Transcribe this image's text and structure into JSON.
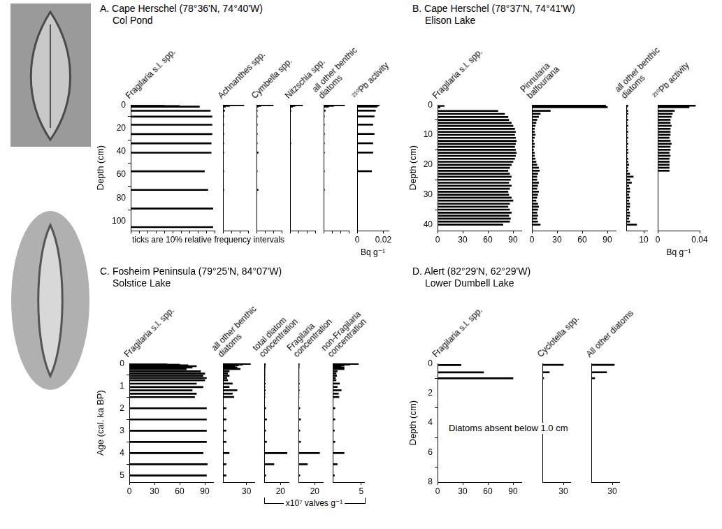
{
  "chart_data": [
    {
      "type": "bar",
      "orientation": "horizontal",
      "title": "A. Cape Herschel (78°36'N, 74°40'W)",
      "subtitle": "Col Pond",
      "y_label": "Depth (cm)",
      "ylim": [
        0,
        108
      ],
      "yticks": [
        0,
        20,
        40,
        60,
        80,
        100
      ],
      "y": [
        0.3,
        0.8,
        1.5,
        5,
        10,
        17,
        25,
        33,
        41,
        57,
        73,
        89,
        105
      ],
      "annotation": "ticks are 10% relative frequency intervals",
      "series": [
        {
          "name": "Fragilaria s.l. spp.",
          "color": "#000000",
          "tick_labels": false,
          "xlim": [
            0,
            100
          ],
          "xticks": [
            0,
            10,
            20,
            30,
            40,
            50,
            60,
            70,
            80,
            90,
            100
          ],
          "values": [
            40,
            58,
            82,
            95,
            97,
            97,
            97,
            96,
            96,
            88,
            92,
            98,
            98
          ]
        },
        {
          "name": "Achnanthes spp.",
          "color": "#000000",
          "tick_labels": false,
          "xlim": [
            0,
            30
          ],
          "xticks": [
            0,
            10,
            20,
            30
          ],
          "values": [
            25,
            8,
            3,
            2,
            1,
            1,
            1,
            1,
            1,
            1,
            1,
            0.5,
            0.5
          ]
        },
        {
          "name": "Cymbella spp.",
          "color": "#000000",
          "tick_labels": false,
          "xlim": [
            0,
            30
          ],
          "xticks": [
            0,
            10,
            20,
            30
          ],
          "values": [
            20,
            5,
            2,
            1,
            1,
            1,
            1,
            1,
            2,
            1,
            2,
            0.5,
            0.5
          ]
        },
        {
          "name": "Nitzschia spp.",
          "color": "#000000",
          "tick_labels": false,
          "xlim": [
            0,
            30
          ],
          "xticks": [
            0,
            10,
            20,
            30
          ],
          "values": [
            15,
            6,
            3,
            1,
            0.5,
            0.5,
            0.5,
            1,
            0.5,
            0.5,
            0.5,
            0.5,
            0.5
          ]
        },
        {
          "name": "all other benthic diatoms",
          "color": "#000000",
          "tick_labels": false,
          "xlim": [
            0,
            30
          ],
          "xticks": [
            0,
            10,
            20,
            30
          ],
          "values": [
            25,
            12,
            6,
            2,
            1,
            1,
            1,
            1,
            1,
            1,
            1,
            0.5,
            0.5
          ]
        },
        {
          "name": "²¹⁰Pb activity",
          "color": "#000000",
          "x_label": "Bq g⁻¹",
          "xlim": [
            0,
            0.024
          ],
          "xticks": [
            0,
            0.02
          ],
          "values": [
            0.017,
            0.016,
            0.015,
            0.014,
            0.013,
            0.012,
            0.013,
            0.012,
            0.012,
            0.011,
            null,
            null,
            null
          ]
        }
      ]
    },
    {
      "type": "bar",
      "orientation": "horizontal",
      "title": "B. Cape Herschel (78°37'N, 74°41'W)",
      "subtitle": "Elison Lake",
      "y_label": "Depth (cm)",
      "ylim": [
        0,
        42
      ],
      "yticks": [
        0,
        10,
        20,
        30,
        40
      ],
      "y": [
        0.3,
        0.8,
        2,
        3,
        4,
        5,
        6,
        7,
        8,
        9,
        10,
        11,
        12,
        13,
        14,
        15,
        16,
        17,
        18,
        19,
        20,
        21,
        22,
        23,
        24,
        25,
        26,
        27,
        28,
        29,
        30,
        31,
        32,
        33,
        34,
        35,
        36,
        37,
        38,
        39,
        40
      ],
      "series": [
        {
          "name": "Fragilaria s.l. spp.",
          "color": "#000000",
          "xlim": [
            0,
            100
          ],
          "xticks": [
            0,
            30,
            60,
            90
          ],
          "values": [
            8,
            3,
            72,
            80,
            84,
            85,
            88,
            90,
            92,
            93,
            92,
            93,
            94,
            93,
            92,
            93,
            94,
            93,
            92,
            90,
            88,
            86,
            84,
            86,
            88,
            87,
            85,
            88,
            86,
            84,
            85,
            88,
            90,
            86,
            84,
            86,
            88,
            85,
            87,
            86,
            78
          ]
        },
        {
          "name": "Pinnularia balfouriana",
          "color": "#000000",
          "xlim": [
            0,
            100
          ],
          "xticks": [
            0,
            30,
            60,
            90
          ],
          "values": [
            88,
            90,
            22,
            10,
            8,
            6,
            5,
            4,
            3,
            3,
            4,
            3,
            2,
            3,
            3,
            2,
            3,
            3,
            4,
            5,
            6,
            8,
            9,
            7,
            6,
            6,
            8,
            7,
            6,
            8,
            7,
            6,
            5,
            7,
            8,
            7,
            6,
            7,
            6,
            7,
            10
          ]
        },
        {
          "name": "all other benthic diatoms",
          "color": "#000000",
          "xlim": [
            0,
            12
          ],
          "xticks": [
            10
          ],
          "values": [
            1,
            0.5,
            1,
            1,
            0.5,
            1,
            0.5,
            1,
            0.5,
            1,
            0.5,
            1,
            0.5,
            1,
            0.5,
            1,
            1,
            0.5,
            1,
            1,
            1.5,
            1,
            1,
            2,
            4,
            2,
            3,
            1.5,
            2,
            2,
            1.5,
            2,
            1.5,
            2,
            2,
            1.5,
            2,
            2,
            1.5,
            2,
            6
          ]
        },
        {
          "name": "²¹⁰Pb activity",
          "color": "#000000",
          "x_label": "Bq g⁻¹",
          "xlim": [
            0,
            0.04
          ],
          "xticks": [
            0,
            0.04
          ],
          "values": [
            0.036,
            0.03,
            0.016,
            0.014,
            0.013,
            0.012,
            0.012,
            0.013,
            0.012,
            0.012,
            0.012,
            0.011,
            0.012,
            0.013,
            0.012,
            0.012,
            0.011,
            0.012,
            0.011,
            0.011,
            0.011,
            0.011,
            0.011,
            null,
            null,
            null,
            null,
            null,
            null,
            null,
            null,
            null,
            null,
            null,
            null,
            null,
            null,
            null,
            null,
            null,
            null
          ]
        }
      ]
    },
    {
      "type": "bar",
      "orientation": "horizontal",
      "title": "C. Fosheim Peninsula (79°25'N, 84°07'W)",
      "subtitle": "Solstice Lake",
      "y_label": "Age (cal. ka BP)",
      "ylim": [
        0,
        5.3
      ],
      "yticks": [
        0,
        1,
        2,
        3,
        4,
        5
      ],
      "y": [
        0.02,
        0.05,
        0.08,
        0.12,
        0.18,
        0.25,
        0.35,
        0.45,
        0.55,
        0.65,
        0.75,
        0.9,
        1.05,
        1.2,
        1.35,
        1.5,
        2,
        2.5,
        3,
        3.5,
        4,
        4.5,
        5
      ],
      "x_label": "x10⁷ valves g⁻¹",
      "series": [
        {
          "name": "Fragilaria s.l. spp.",
          "color": "#000000",
          "xlim": [
            0,
            100
          ],
          "xticks": [
            0,
            30,
            60,
            90
          ],
          "values": [
            45,
            60,
            70,
            80,
            75,
            68,
            85,
            90,
            88,
            92,
            90,
            80,
            88,
            75,
            80,
            78,
            92,
            92,
            92,
            92,
            88,
            93,
            92
          ]
        },
        {
          "name": "all other benthic diatoms",
          "color": "#000000",
          "xlim": [
            0,
            40
          ],
          "xticks": [
            30
          ],
          "values": [
            35,
            25,
            20,
            15,
            18,
            22,
            8,
            6,
            8,
            5,
            6,
            12,
            8,
            18,
            12,
            14,
            4,
            4,
            4,
            4,
            8,
            4,
            4
          ]
        },
        {
          "name": "total diatom concentration",
          "color": "#000000",
          "xlim": [
            0,
            30
          ],
          "xticks": [
            20
          ],
          "values": [
            1.5,
            1.2,
            1,
            1,
            1.2,
            1,
            1,
            1,
            1,
            1,
            1,
            1.5,
            1,
            1.5,
            1,
            1,
            2,
            3,
            2,
            3,
            28,
            12,
            2
          ]
        },
        {
          "name": "Fragilaria concentration",
          "color": "#000000",
          "xlim": [
            0,
            30
          ],
          "xticks": [
            20
          ],
          "values": [
            1,
            0.8,
            0.8,
            0.8,
            1,
            0.8,
            0.8,
            0.8,
            0.8,
            0.8,
            0.8,
            1.2,
            0.8,
            1.2,
            0.8,
            0.8,
            1.8,
            2.7,
            1.8,
            2.7,
            26,
            11,
            1.8
          ]
        },
        {
          "name": "non-Fragilaria concentration",
          "color": "#000000",
          "xlim": [
            0,
            5.5
          ],
          "xticks": [
            5
          ],
          "values": [
            4.5,
            3,
            2,
            1.5,
            2,
            2,
            0.8,
            0.6,
            0.7,
            0.5,
            0.6,
            1.2,
            0.8,
            1.5,
            1,
            1.1,
            0.4,
            0.4,
            0.3,
            0.4,
            2,
            0.8,
            0.3
          ]
        }
      ]
    },
    {
      "type": "bar",
      "orientation": "horizontal",
      "title": "D. Alert (82°29'N, 62°29'W)",
      "subtitle": "Lower Dumbell Lake",
      "y_label": "Depth (cm)",
      "ylim": [
        0,
        8
      ],
      "yticks": [
        0,
        2,
        4,
        6,
        8
      ],
      "y": [
        0.1,
        0.6,
        1.0
      ],
      "annotation": "Diatoms absent below 1.0 cm",
      "series": [
        {
          "name": "Fragilaria s.l. spp.",
          "color": "#000000",
          "xlim": [
            0,
            100
          ],
          "xticks": [
            0,
            30,
            60,
            90
          ],
          "values": [
            28,
            55,
            90
          ]
        },
        {
          "name": "Cyclotella spp.",
          "color": "#000000",
          "xlim": [
            0,
            40
          ],
          "xticks": [
            30
          ],
          "values": [
            30,
            10,
            2
          ]
        },
        {
          "name": "All other diatoms",
          "color": "#000000",
          "xlim": [
            0,
            40
          ],
          "xticks": [
            30
          ],
          "values": [
            33,
            22,
            5
          ]
        }
      ]
    }
  ]
}
